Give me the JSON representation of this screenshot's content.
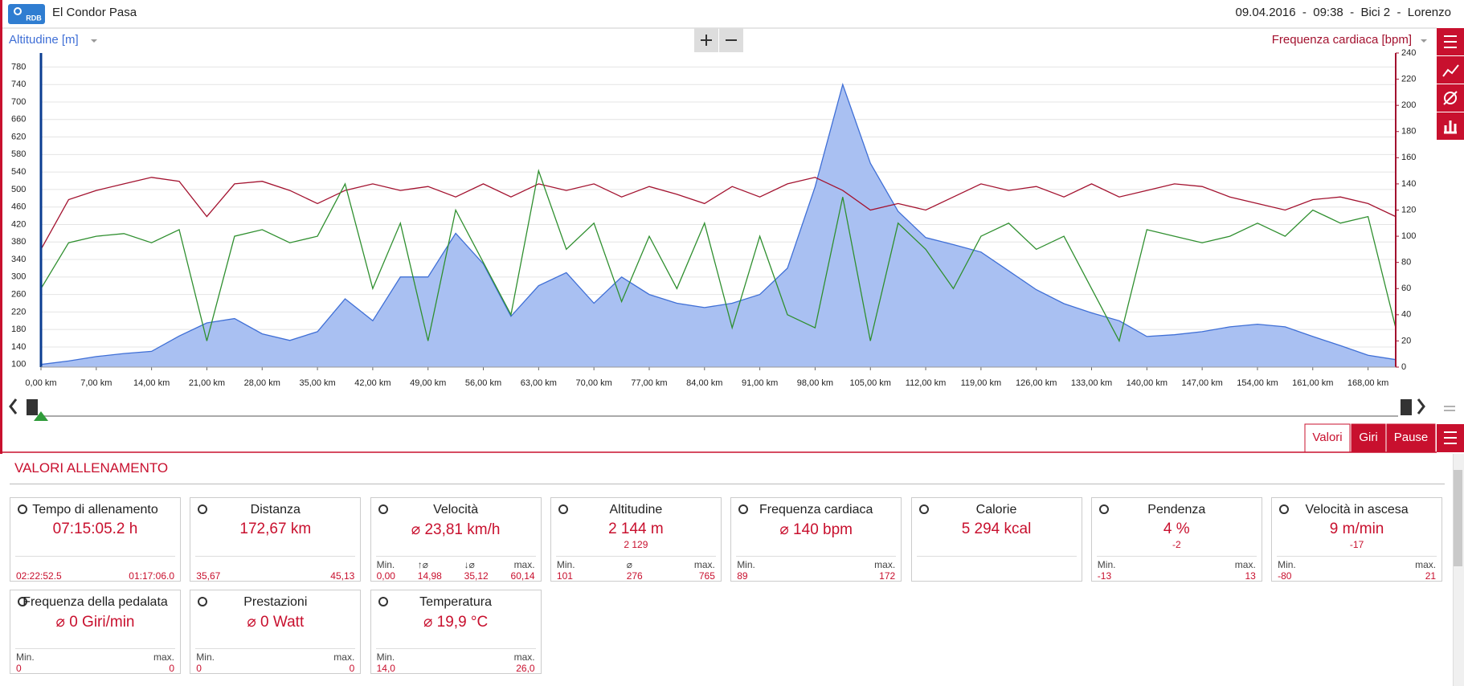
{
  "header": {
    "logo": "RDB",
    "title": "El Condor Pasa",
    "info": "09.04.2016  -  09:38  -  Bici 2  -  Lorenzo"
  },
  "chart_data": {
    "type": "line",
    "grid": true,
    "x": [
      0,
      3.5,
      7,
      10.5,
      14,
      17.5,
      21,
      24.5,
      28,
      31.5,
      35,
      38.5,
      42,
      45.5,
      49,
      52.5,
      56,
      59.5,
      63,
      66.5,
      70,
      73.5,
      77,
      80.5,
      84,
      87.5,
      91,
      94.5,
      98,
      101.5,
      105,
      108.5,
      112,
      115.5,
      119,
      122.5,
      126,
      129.5,
      133,
      136.5,
      140,
      143.5,
      147,
      150.5,
      154,
      157.5,
      161,
      164.5,
      168,
      171.5
    ],
    "xlim": [
      0,
      171.5
    ],
    "xticks": [
      {
        "value": 0,
        "label": "0,00 km"
      },
      {
        "value": 7,
        "label": "7,00 km"
      },
      {
        "value": 14,
        "label": "14,00 km"
      },
      {
        "value": 21,
        "label": "21,00 km"
      },
      {
        "value": 28,
        "label": "28,00 km"
      },
      {
        "value": 35,
        "label": "35,00 km"
      },
      {
        "value": 42,
        "label": "42,00 km"
      },
      {
        "value": 49,
        "label": "49,00 km"
      },
      {
        "value": 56,
        "label": "56,00 km"
      },
      {
        "value": 63,
        "label": "63,00 km"
      },
      {
        "value": 70,
        "label": "70,00 km"
      },
      {
        "value": 77,
        "label": "77,00 km"
      },
      {
        "value": 84,
        "label": "84,00 km"
      },
      {
        "value": 91,
        "label": "91,00 km"
      },
      {
        "value": 98,
        "label": "98,00 km"
      },
      {
        "value": 105,
        "label": "105,00 km"
      },
      {
        "value": 112,
        "label": "112,00 km"
      },
      {
        "value": 119,
        "label": "119,00 km"
      },
      {
        "value": 126,
        "label": "126,00 km"
      },
      {
        "value": 133,
        "label": "133,00 km"
      },
      {
        "value": 140,
        "label": "140,00 km"
      },
      {
        "value": 147,
        "label": "147,00 km"
      },
      {
        "value": 154,
        "label": "154,00 km"
      },
      {
        "value": 161,
        "label": "161,00 km"
      },
      {
        "value": 168,
        "label": "168,00 km"
      }
    ],
    "ylim": [
      94,
      812
    ],
    "yticks": [
      100,
      140,
      180,
      220,
      260,
      300,
      340,
      380,
      420,
      460,
      500,
      540,
      580,
      620,
      660,
      700,
      740,
      780
    ],
    "y2lim": [
      0,
      240
    ],
    "y2ticks": [
      0,
      20,
      40,
      60,
      80,
      100,
      120,
      140,
      160,
      180,
      200,
      220,
      240
    ],
    "series": [
      {
        "name": "Altitudine [m]",
        "color": "#3f6fd6",
        "fill": "#a9c0f2",
        "values": [
          100,
          108,
          118,
          125,
          130,
          165,
          195,
          205,
          170,
          155,
          175,
          250,
          200,
          300,
          300,
          400,
          330,
          210,
          280,
          310,
          240,
          300,
          260,
          240,
          230,
          240,
          260,
          320,
          506,
          740,
          560,
          450,
          390,
          374,
          357,
          314,
          271,
          239,
          218,
          200,
          164,
          168,
          175,
          186,
          192,
          186,
          164,
          143,
          121,
          111
        ]
      },
      {
        "name": "Frequenza cardiaca [bpm]",
        "color": "#a3122f",
        "axis": "y2",
        "values": [
          90,
          128,
          135,
          140,
          145,
          142,
          115,
          140,
          142,
          135,
          125,
          135,
          140,
          135,
          138,
          130,
          140,
          130,
          140,
          135,
          140,
          130,
          138,
          132,
          125,
          138,
          130,
          140,
          145,
          135,
          120,
          125,
          120,
          130,
          140,
          135,
          138,
          130,
          140,
          130,
          135,
          140,
          138,
          130,
          125,
          120,
          128,
          130,
          125,
          115
        ]
      },
      {
        "color": "#2f8f2f",
        "axis": "y2",
        "values": [
          60,
          95,
          100,
          102,
          95,
          105,
          20,
          100,
          105,
          95,
          100,
          140,
          60,
          110,
          20,
          120,
          80,
          40,
          150,
          90,
          110,
          50,
          100,
          60,
          110,
          30,
          100,
          40,
          30,
          130,
          20,
          110,
          90,
          60,
          100,
          110,
          90,
          100,
          60,
          20,
          105,
          100,
          95,
          100,
          110,
          100,
          120,
          110,
          115,
          30
        ]
      }
    ]
  },
  "tabs": [
    "Valori",
    "Giri",
    "Pause"
  ],
  "panel": {
    "title": "VALORI ALLENAMENTO",
    "cards": [
      {
        "title": "Tempo di allenamento",
        "main": "07:15:05.2 h",
        "stats": [
          {
            "value": "02:22:52.5"
          },
          {
            "value": "01:17:06.0"
          }
        ]
      },
      {
        "title": "Distanza",
        "main": "172,67 km",
        "stats": [
          {
            "value": "35,67"
          },
          {
            "value": "45,13"
          }
        ]
      },
      {
        "title": "Velocità",
        "main": "⌀ 23,81 km/h",
        "stats": [
          {
            "label": "Min.",
            "value": "0,00"
          },
          {
            "label": "↑⌀",
            "value": "14,98"
          },
          {
            "label": "↓⌀",
            "value": "35,12"
          },
          {
            "label": "max.",
            "value": "60,14"
          }
        ]
      },
      {
        "title": "Altitudine",
        "main": "2 144 m",
        "sub": "2 129",
        "stats": [
          {
            "label": "Min.",
            "value": "101"
          },
          {
            "label": "⌀",
            "value": "276"
          },
          {
            "label": "max.",
            "value": "765"
          }
        ]
      },
      {
        "title": "Frequenza cardiaca",
        "main": "⌀ 140 bpm",
        "stats": [
          {
            "label": "Min.",
            "value": "89"
          },
          {
            "label": "max.",
            "value": "172"
          }
        ]
      },
      {
        "title": "Calorie",
        "main": "5 294 kcal"
      },
      {
        "title": "Pendenza",
        "main": "4 %",
        "sub": "-2",
        "stats": [
          {
            "label": "Min.",
            "value": "-13"
          },
          {
            "label": "max.",
            "value": "13"
          }
        ]
      },
      {
        "title": "Velocità in ascesa",
        "main": "9 m/min",
        "sub": "-17",
        "stats": [
          {
            "label": "Min.",
            "value": "-80"
          },
          {
            "label": "max.",
            "value": "21"
          }
        ]
      },
      {
        "title": "Frequenza della pedalata",
        "main": "⌀ 0 Giri/min",
        "stats": [
          {
            "label": "Min.",
            "value": "0"
          },
          {
            "label": "max.",
            "value": "0"
          }
        ]
      },
      {
        "title": "Prestazioni",
        "main": "⌀ 0 Watt",
        "stats": [
          {
            "label": "Min.",
            "value": "0"
          },
          {
            "label": "max.",
            "value": "0"
          }
        ]
      },
      {
        "title": "Temperatura",
        "main": "⌀ 19,9 °C",
        "stats": [
          {
            "label": "Min.",
            "value": "14,0"
          },
          {
            "label": "max.",
            "value": "26,0"
          }
        ]
      }
    ]
  }
}
